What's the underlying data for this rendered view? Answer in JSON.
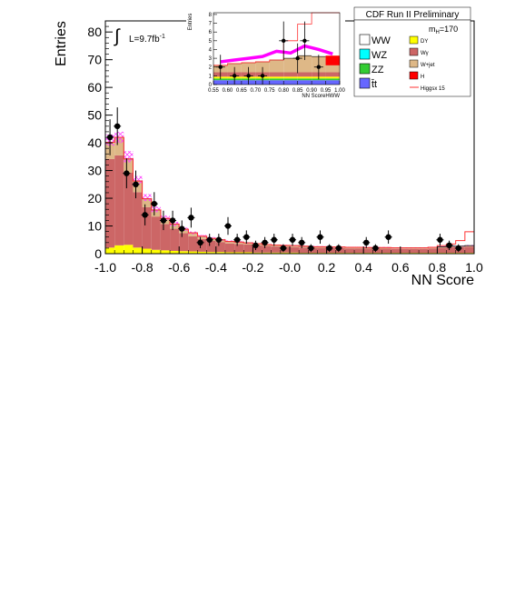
{
  "chart_data": {
    "type": "bar",
    "title": "CDF Run II Preliminary",
    "xlabel": "NN Score",
    "ylabel": "Entries",
    "xlim": [
      -1.0,
      1.0
    ],
    "ylim": [
      0,
      84
    ],
    "xticks": [
      "-1.0",
      "-0.8",
      "-0.6",
      "-0.4",
      "-0.2",
      "-0.0",
      "0.2",
      "0.4",
      "0.6",
      "0.8",
      "1.0"
    ],
    "yticks": [
      "0",
      "10",
      "20",
      "30",
      "40",
      "50",
      "60",
      "70",
      "80"
    ],
    "lumi_label": "L=9.7fb",
    "lumi_sup": "-1",
    "mass_label": "m",
    "mass_sub": "H",
    "mass_value": "=170",
    "bin_edges": [
      -1.0,
      -0.95,
      -0.9,
      -0.85,
      -0.8,
      -0.75,
      -0.7,
      -0.65,
      -0.6,
      -0.55,
      -0.5,
      -0.45,
      -0.4,
      -0.35,
      -0.3,
      -0.25,
      -0.2,
      -0.15,
      -0.1,
      -0.05,
      0.0,
      0.05,
      0.1,
      0.15,
      0.2,
      0.25,
      0.3,
      0.35,
      0.4,
      0.45,
      0.5,
      0.55,
      0.6,
      0.65,
      0.7,
      0.75,
      0.8,
      0.85,
      0.9,
      0.95,
      1.0
    ],
    "series": [
      {
        "name": "DY",
        "color": "#ffff00",
        "values": [
          2.2,
          3.0,
          3.2,
          2.2,
          1.8,
          1.4,
          1.2,
          1.0,
          0.9,
          0.8,
          0.7,
          0.6,
          0.6,
          0.5,
          0.5,
          0.5,
          0.4,
          0.4,
          0.4,
          0.4,
          0.4,
          0.3,
          0.3,
          0.3,
          0.3,
          0.3,
          0.3,
          0.3,
          0.3,
          0.3,
          0.3,
          0.3,
          0.3,
          0.3,
          0.3,
          0.3,
          0.3,
          0.3,
          0.3,
          0.3
        ]
      },
      {
        "name": "Wγ",
        "color": "#cc6666",
        "values": [
          32.0,
          32.5,
          26.0,
          20.0,
          15.0,
          12.0,
          9.5,
          8.0,
          6.5,
          5.5,
          4.6,
          4.0,
          3.6,
          3.2,
          3.0,
          2.8,
          2.6,
          2.4,
          2.2,
          2.1,
          2.0,
          1.9,
          1.8,
          1.8,
          1.7,
          1.7,
          1.6,
          1.6,
          1.5,
          1.5,
          1.5,
          1.4,
          1.4,
          1.4,
          1.4,
          1.6,
          1.8,
          2.0,
          2.0,
          2.2
        ]
      },
      {
        "name": "W+jet",
        "color": "#deb887",
        "values": [
          6.0,
          6.5,
          5.0,
          4.0,
          3.0,
          2.4,
          2.0,
          1.7,
          1.4,
          1.2,
          1.0,
          0.9,
          0.8,
          0.7,
          0.7,
          0.6,
          0.6,
          0.5,
          0.5,
          0.5,
          0.5,
          0.5,
          0.4,
          0.4,
          0.4,
          0.4,
          0.4,
          0.4,
          0.4,
          0.4,
          0.4,
          0.4,
          0.4,
          0.4,
          0.4,
          0.4,
          0.4,
          0.4,
          0.4,
          0.4
        ]
      },
      {
        "name": "Higgsx 15",
        "color": "#ff3333",
        "values": [
          0,
          0,
          0,
          0,
          0,
          0,
          0,
          0,
          0,
          0,
          0,
          0,
          0,
          0,
          0,
          0,
          0,
          0,
          0,
          0,
          0,
          0,
          0,
          0,
          0,
          0,
          0,
          0,
          0,
          0,
          0,
          0,
          0,
          0,
          0,
          0,
          0.4,
          0.8,
          2.0,
          5.0
        ]
      }
    ],
    "uncertainty_band": {
      "low": [
        39,
        40,
        33,
        25,
        19,
        15,
        12,
        10,
        8.2,
        7,
        6,
        5.2,
        4.7,
        4.2,
        3.9,
        3.6,
        3.4,
        3.1,
        2.9,
        2.8,
        2.7,
        2.5,
        2.4,
        2.3,
        2.2,
        2.2,
        2.1,
        2.1,
        2.0,
        2.0,
        2.0,
        1.9,
        1.9,
        1.9,
        1.9,
        2.1,
        2.3,
        2.5,
        2.5,
        2.7
      ],
      "high": [
        43,
        44,
        37,
        28,
        21.5,
        17,
        13.8,
        11.5,
        9.4,
        8.0,
        6.8,
        6.0,
        5.3,
        4.8,
        4.5,
        4.1,
        3.8,
        3.5,
        3.3,
        3.2,
        3.1,
        2.9,
        2.8,
        2.7,
        2.6,
        2.6,
        2.5,
        2.5,
        2.4,
        2.4,
        2.4,
        2.3,
        2.3,
        2.3,
        2.3,
        2.5,
        2.7,
        2.9,
        2.9,
        3.1
      ]
    },
    "data_points": [
      {
        "x": -0.975,
        "y": 42,
        "err": 6.5
      },
      {
        "x": -0.935,
        "y": 46,
        "err": 6.8
      },
      {
        "x": -0.885,
        "y": 29,
        "err": 5.4
      },
      {
        "x": -0.835,
        "y": 25,
        "err": 5.0
      },
      {
        "x": -0.785,
        "y": 14,
        "err": 3.8
      },
      {
        "x": -0.735,
        "y": 18,
        "err": 4.2
      },
      {
        "x": -0.685,
        "y": 12,
        "err": 3.5
      },
      {
        "x": -0.635,
        "y": 12,
        "err": 3.5
      },
      {
        "x": -0.585,
        "y": 9,
        "err": 3.0
      },
      {
        "x": -0.535,
        "y": 13,
        "err": 3.6
      },
      {
        "x": -0.485,
        "y": 4,
        "err": 2.0
      },
      {
        "x": -0.435,
        "y": 5,
        "err": 2.2
      },
      {
        "x": -0.385,
        "y": 5,
        "err": 2.2
      },
      {
        "x": -0.335,
        "y": 10,
        "err": 3.2
      },
      {
        "x": -0.285,
        "y": 5,
        "err": 2.2
      },
      {
        "x": -0.235,
        "y": 6,
        "err": 2.4
      },
      {
        "x": -0.185,
        "y": 3,
        "err": 1.7
      },
      {
        "x": -0.135,
        "y": 4,
        "err": 2.0
      },
      {
        "x": -0.085,
        "y": 5,
        "err": 2.2
      },
      {
        "x": -0.035,
        "y": 2,
        "err": 1.4
      },
      {
        "x": 0.015,
        "y": 5,
        "err": 2.2
      },
      {
        "x": 0.065,
        "y": 4,
        "err": 2.0
      },
      {
        "x": 0.115,
        "y": 2,
        "err": 1.4
      },
      {
        "x": 0.165,
        "y": 6,
        "err": 2.4
      },
      {
        "x": 0.215,
        "y": 2,
        "err": 1.4
      },
      {
        "x": 0.265,
        "y": 2,
        "err": 1.4
      },
      {
        "x": 0.415,
        "y": 4,
        "err": 2.0
      },
      {
        "x": 0.465,
        "y": 2,
        "err": 1.4
      },
      {
        "x": 0.535,
        "y": 6,
        "err": 2.4
      },
      {
        "x": 0.815,
        "y": 5,
        "err": 2.2
      },
      {
        "x": 0.865,
        "y": 3,
        "err": 1.7
      },
      {
        "x": 0.915,
        "y": 2,
        "err": 1.4
      }
    ],
    "legend_placement": "top-right",
    "legend_left": [
      {
        "label": "WW",
        "color": "#ffffff"
      },
      {
        "label": "WZ",
        "color": "#00ffff"
      },
      {
        "label": "ZZ",
        "color": "#33cc33"
      },
      {
        "label": "t̄t",
        "color": "#6666ff"
      }
    ],
    "legend_right": [
      {
        "label": "DY",
        "color": "#ffff00"
      },
      {
        "label": "Wγ",
        "color": "#cc6666"
      },
      {
        "label": "W+jet",
        "color": "#deb887"
      },
      {
        "label": "H",
        "color": "#ff0000"
      },
      {
        "label": "Higgsx 15",
        "color": "#ff3333",
        "line": true
      }
    ],
    "inset": {
      "xlabel": "NN ScoreHWW",
      "ylabel": "Entries",
      "xlim": [
        0.55,
        1.0
      ],
      "ylim": [
        0,
        8.2
      ],
      "xticks": [
        "0.55",
        "0.60",
        "0.65",
        "0.70",
        "0.75",
        "0.80",
        "0.85",
        "0.90",
        "0.95",
        "1.00"
      ],
      "yticks": [
        "0",
        "1",
        "2",
        "3",
        "4",
        "5",
        "6",
        "7",
        "8"
      ],
      "bin_edges": [
        0.55,
        0.6,
        0.65,
        0.7,
        0.75,
        0.8,
        0.85,
        0.9,
        0.95,
        1.0
      ],
      "stack_top": [
        2.2,
        2.4,
        2.5,
        2.6,
        2.8,
        3.0,
        3.3,
        3.2,
        2.9
      ],
      "band_top": [
        2.6,
        2.8,
        3.0,
        3.2,
        3.8,
        3.6,
        4.4,
        4.0,
        3.5
      ],
      "higgs_line": [
        0,
        0,
        0,
        0,
        0,
        2.0,
        3.6,
        8.2,
        8.2
      ],
      "data_points": [
        {
          "x": 0.575,
          "y": 2,
          "err": 1.4
        },
        {
          "x": 0.625,
          "y": 1,
          "err": 1.0
        },
        {
          "x": 0.675,
          "y": 1,
          "err": 1.0
        },
        {
          "x": 0.725,
          "y": 1,
          "err": 1.0
        },
        {
          "x": 0.8,
          "y": 5,
          "err": 2.2
        },
        {
          "x": 0.85,
          "y": 3,
          "err": 1.7
        },
        {
          "x": 0.875,
          "y": 5,
          "err": 2.2
        },
        {
          "x": 0.925,
          "y": 2,
          "err": 1.4
        }
      ]
    }
  }
}
